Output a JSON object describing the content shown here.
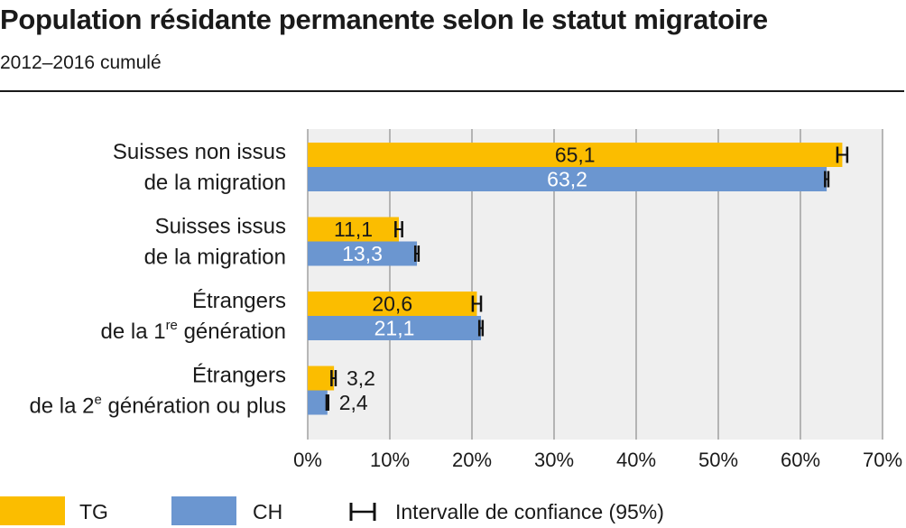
{
  "title": "Population résidante permanente selon le statut migratoire",
  "subtitle": "2012–2016 cumulé",
  "colors": {
    "TG": "#fbbd00",
    "CH": "#6b96d0",
    "plot_bg": "#efefef",
    "grid": "#8c8c8c",
    "ci": "#111111"
  },
  "legend": {
    "tg_label": "TG",
    "ch_label": "CH",
    "ci_label": "Intervalle de confiance (95%)"
  },
  "chart_data": {
    "type": "bar",
    "orientation": "horizontal",
    "categories": [
      {
        "line1": "Suisses non issus",
        "line2": "de la migration",
        "sup": "",
        "line2_rest": ""
      },
      {
        "line1": "Suisses issus",
        "line2": "de la migration",
        "sup": "",
        "line2_rest": ""
      },
      {
        "line1": "Étrangers",
        "line2": "de la 1",
        "sup": "re",
        "line2_rest": " génération"
      },
      {
        "line1": "Étrangers",
        "line2": "de la 2",
        "sup": "e",
        "line2_rest": " génération ou plus"
      }
    ],
    "series": [
      {
        "name": "TG",
        "values": [
          65.1,
          11.1,
          20.6,
          3.2
        ],
        "labels": [
          "65,1",
          "11,1",
          "20,6",
          "3,2"
        ],
        "ci": [
          [
            64.5,
            65.7
          ],
          [
            10.7,
            11.5
          ],
          [
            20.1,
            21.1
          ],
          [
            2.9,
            3.4
          ]
        ]
      },
      {
        "name": "CH",
        "values": [
          63.2,
          13.3,
          21.1,
          2.4
        ],
        "labels": [
          "63,2",
          "13,3",
          "21,1",
          "2,4"
        ],
        "ci": [
          [
            63.0,
            63.4
          ],
          [
            13.1,
            13.5
          ],
          [
            20.9,
            21.3
          ],
          [
            2.3,
            2.5
          ]
        ]
      }
    ],
    "xlim": [
      0,
      70
    ],
    "xticks": [
      0,
      10,
      20,
      30,
      40,
      50,
      60,
      70
    ],
    "xtick_labels": [
      "0%",
      "10%",
      "20%",
      "30%",
      "40%",
      "50%",
      "60%",
      "70%"
    ],
    "grid": true,
    "legend_position": "bottom"
  }
}
